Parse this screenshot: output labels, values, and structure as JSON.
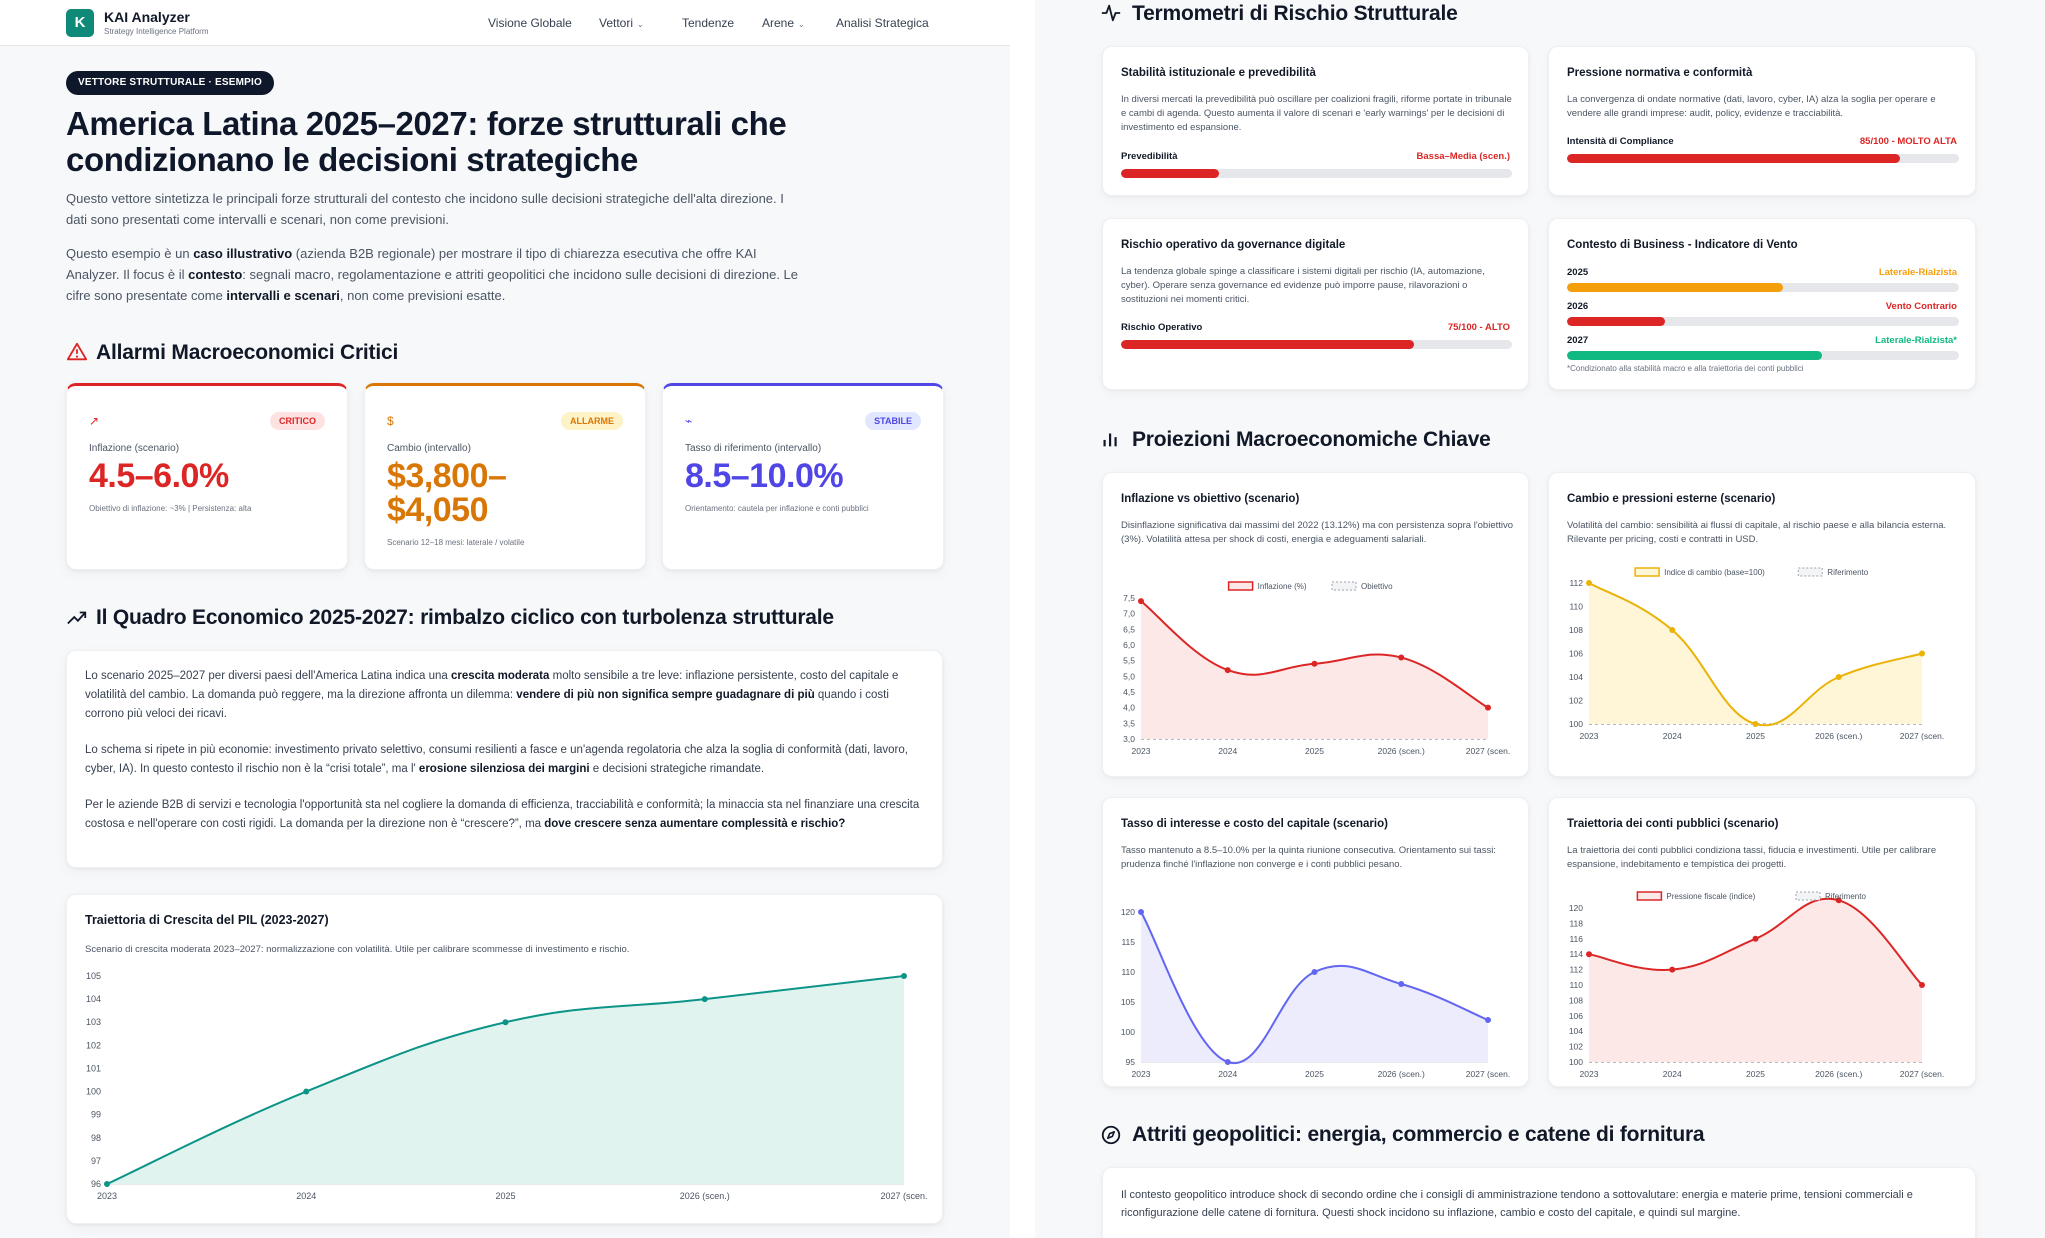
{
  "nav": {
    "logo_letter": "K",
    "brand": "KAI Analyzer",
    "tagline": "Strategy Intelligence Platform",
    "items": [
      {
        "label": "Visione Globale",
        "dropdown": false
      },
      {
        "label": "Vettori",
        "dropdown": true
      },
      {
        "label": "Tendenze",
        "dropdown": false
      },
      {
        "label": "Arene",
        "dropdown": true
      },
      {
        "label": "Analisi Strategica",
        "dropdown": false
      }
    ]
  },
  "hero": {
    "badge": "VETTORE STRUTTURALE · ESEMPIO",
    "title": "America Latina 2025–2027: forze strutturali che condizionano le decisioni strategiche",
    "intro": "Questo vettore sintetizza le principali forze strutturali del contesto che incidono sulle decisioni strategiche dell'alta direzione. I dati sono presentati come intervalli e scenari, non come previsioni.",
    "example_parts": [
      "Questo esempio è un ",
      "caso illustrativo",
      " (azienda B2B regionale) per mostrare il tipo di chiarezza esecutiva che offre KAI Analyzer. Il focus è il ",
      "contesto",
      ": segnali macro, regolamentazione e attriti geopolitici che incidono sulle decisioni di direzione. Le cifre sono presentate come ",
      "intervalli e scenari",
      ", non come previsioni esatte."
    ]
  },
  "alarms": {
    "title": "Allarmi Macroeconomici Critici",
    "cards": [
      {
        "icon": "trending-up-icon",
        "glyph": "↗",
        "status": "CRITICO",
        "label": "Inflazione (scenario)",
        "value": "4.5–6.0%",
        "note": "Obiettivo di inflazione: ~3% | Persistenza: alta",
        "color": "#dc2626",
        "pill_bg": "#fee2e2"
      },
      {
        "icon": "dollar-icon",
        "glyph": "$",
        "status": "ALLARME",
        "label": "Cambio (intervallo)",
        "value": "$3,800–$4,050",
        "note": "Scenario 12–18 mesi: laterale / volatile",
        "color": "#d97706",
        "pill_bg": "#fef3c7"
      },
      {
        "icon": "activity-icon",
        "glyph": "⌁",
        "status": "STABILE",
        "label": "Tasso di riferimento (intervallo)",
        "value": "8.5–10.0%",
        "note": "Orientamento: cautela per inflazione e conti pubblici",
        "color": "#4f46e5",
        "pill_bg": "#e0e7ff"
      }
    ]
  },
  "framework": {
    "title": "Il Quadro Economico 2025-2027: rimbalzo ciclico con turbolenza strutturale",
    "p1": [
      "Lo scenario 2025–2027 per diversi paesi dell'America Latina indica una ",
      "crescita moderata",
      " molto sensibile a tre leve: inflazione persistente, costo del capitale e volatilità del cambio. La domanda può reggere, ma la direzione affronta un dilemma: ",
      "vendere di più non significa sempre guadagnare di più",
      " quando i costi corrono più veloci dei ricavi."
    ],
    "p2": [
      "Lo schema si ripete in più economie: investimento privato selettivo, consumi resilienti a fasce e un'agenda regolatoria che alza la soglia di conformità (dati, lavoro, cyber, IA). In questo contesto il rischio non è la “crisi totale”, ma l' ",
      "erosione silenziosa dei margini",
      " e decisioni strategiche rimandate."
    ],
    "p3": [
      "Per le aziende B2B di servizi e tecnologia l'opportunità sta nel cogliere la domanda di efficienza, tracciabilità e conformità; la minaccia sta nel finanziare una crescita costosa e nell'operare con costi rigidi. La domanda per la direzione non è “crescere?”, ma ",
      "dove crescere senza aumentare complessità e rischio?",
      ""
    ]
  },
  "gdp_chart": {
    "title": "Traiettoria di Crescita del PIL (2023-2027)",
    "desc": "Scenario di crescita moderata 2023–2027: normalizzazione con volatilità. Utile per calibrare scommesse di investimento e rischio.",
    "color": "#0d9488"
  },
  "risk": {
    "title": "Termometri di Rischio Strutturale",
    "cards": [
      {
        "title": "Stabilità istituzionale e prevedibilità",
        "desc": "In diversi mercati la prevedibilità può oscillare per coalizioni fragili, riforme portate in tribunale e cambi di agenda. Questo aumenta il valore di scenari e 'early warnings' per le decisioni di investimento ed espansione.",
        "bars": [
          {
            "label": "Prevedibilità",
            "value": "Bassa–Media (scen.)",
            "level": 0.25,
            "color": "#dc2626"
          }
        ]
      },
      {
        "title": "Pressione normativa e conformità",
        "desc": "La convergenza di ondate normative (dati, lavoro, cyber, IA) alza la soglia per operare e vendere alle grandi imprese: audit, policy, evidenze e tracciabilità.",
        "bars": [
          {
            "label": "Intensità di Compliance",
            "value": "85/100 - MOLTO ALTA",
            "level": 0.85,
            "color": "#dc2626"
          }
        ]
      },
      {
        "title": "Rischio operativo da governance digitale",
        "desc": "La tendenza globale spinge a classificare i sistemi digitali per rischio (IA, automazione, cyber). Operare senza governance ed evidenze può imporre pause, rilavorazioni o sostituzioni nei momenti critici.",
        "bars": [
          {
            "label": "Rischio Operativo",
            "value": "75/100 - ALTO",
            "level": 0.75,
            "color": "#dc2626"
          }
        ]
      },
      {
        "title": "Contesto di Business - Indicatore di Vento",
        "desc": "",
        "bars": [
          {
            "label": "2025",
            "value": "Laterale-Rialzista",
            "level": 0.55,
            "color": "#f59e0b"
          },
          {
            "label": "2026",
            "value": "Vento Contrario",
            "level": 0.25,
            "color": "#dc2626"
          },
          {
            "label": "2027",
            "value": "Laterale-Rialzista*",
            "level": 0.65,
            "color": "#10b981"
          }
        ],
        "note": "*Condizionato alla stabilità macro e alla traiettoria dei conti pubblici"
      }
    ]
  },
  "proj": {
    "title": "Proiezioni Macroeconomiche Chiave",
    "charts": [
      {
        "title": "Inflazione vs obiettivo (scenario)",
        "desc": "Disinflazione significativa dai massimi del 2022 (13.12%) ma con persistenza sopra l'obiettivo (3%). Volatilità attesa per shock di costi, energia e adeguamenti salariali."
      },
      {
        "title": "Cambio e pressioni esterne (scenario)",
        "desc": "Volatilità del cambio: sensibilità ai flussi di capitale, al rischio paese e alla bilancia esterna. Rilevante per pricing, costi e contratti in USD."
      },
      {
        "title": "Tasso di interesse e costo del capitale (scenario)",
        "desc": "Tasso mantenuto a 8.5–10.0% per la quinta riunione consecutiva. Orientamento sui tassi: prudenza finché l'inflazione non converge e i conti pubblici pesano."
      },
      {
        "title": "Traiettoria dei conti pubblici (scenario)",
        "desc": "La traiettoria dei conti pubblici condiziona tassi, fiducia e investimenti. Utile per calibrare espansione, indebitamento e tempistica dei progetti."
      }
    ]
  },
  "geo": {
    "title": "Attriti geopolitici: energia, commercio e catene di fornitura",
    "text": "Il contesto geopolitico introduce shock di secondo ordine che i consigli di amministrazione tendono a sottovalutare: energia e materie prime, tensioni commerciali e riconfigurazione delle catene di fornitura. Questi shock incidono su inflazione, cambio e costo del capitale, e quindi sul margine."
  },
  "chart_data": [
    {
      "id": "gdp",
      "type": "area",
      "title": "Traiettoria di Crescita del PIL (2023-2027)",
      "x": [
        "2023",
        "2024",
        "2025",
        "2026 (scen.)",
        "2027 (scen."
      ],
      "series": [
        {
          "values": [
            96,
            100,
            103,
            104,
            105
          ]
        }
      ],
      "ylim": [
        96,
        105
      ],
      "yticks": [
        96,
        97,
        98,
        99,
        100,
        101,
        102,
        103,
        104,
        105
      ],
      "color": "#0d9488",
      "fill": "#e1f3ef",
      "grid": false
    },
    {
      "id": "infl",
      "type": "area",
      "title": "Inflazione vs obiettivo (scenario)",
      "x": [
        "2023",
        "2024",
        "2025",
        "2026 (scen.)",
        "2027 (scen."
      ],
      "series": [
        {
          "name": "Inflazione (%)",
          "values": [
            7.4,
            5.2,
            5.4,
            5.6,
            4.0
          ]
        },
        {
          "name": "Obiettivo",
          "values": [
            3.0,
            3.0,
            3.0,
            3.0,
            3.0
          ]
        }
      ],
      "ylim": [
        3.0,
        7.5
      ],
      "yticks": [
        "3,0",
        "3,5",
        "4,0",
        "4,5",
        "5,0",
        "5,5",
        "6,0",
        "6,5",
        "7,0",
        "7,5"
      ],
      "color": "#dc2626",
      "fill": "#fde8e8",
      "legend": "top"
    },
    {
      "id": "fx",
      "type": "area",
      "title": "Cambio e pressioni esterne (scenario)",
      "x": [
        "2023",
        "2024",
        "2025",
        "2026 (scen.)",
        "2027 (scen."
      ],
      "series": [
        {
          "name": "Indice di cambio (base=100)",
          "values": [
            112,
            108,
            100,
            104,
            106
          ]
        },
        {
          "name": "Riferimento",
          "values": [
            100,
            100,
            100,
            100,
            100
          ]
        }
      ],
      "ylim": [
        100,
        112
      ],
      "yticks": [
        "100",
        "102",
        "104",
        "106",
        "108",
        "110",
        "112"
      ],
      "color": "#eab308",
      "fill": "#fef6d6",
      "legend": "top"
    },
    {
      "id": "rate",
      "type": "area",
      "title": "Tasso di interesse e costo del capitale (scenario)",
      "x": [
        "2023",
        "2024",
        "2025",
        "2026 (scen.)",
        "2027 (scen."
      ],
      "series": [
        {
          "values": [
            120,
            95,
            110,
            108,
            102
          ]
        }
      ],
      "ylim": [
        95,
        120
      ],
      "yticks": [
        "95",
        "100",
        "105",
        "110",
        "115",
        "120"
      ],
      "color": "#6366f1",
      "fill": "#ececfd"
    },
    {
      "id": "fiscal",
      "type": "area",
      "title": "Traiettoria dei conti pubblici (scenario)",
      "x": [
        "2023",
        "2024",
        "2025",
        "2026 (scen.)",
        "2027 (scen."
      ],
      "series": [
        {
          "name": "Pressione fiscale (indice)",
          "values": [
            114,
            112,
            116,
            121,
            110
          ]
        },
        {
          "name": "Riferimento",
          "values": [
            100,
            100,
            100,
            100,
            100
          ]
        }
      ],
      "ylim": [
        100,
        120
      ],
      "yticks": [
        "100",
        "102",
        "104",
        "106",
        "108",
        "110",
        "112",
        "114",
        "116",
        "118",
        "120"
      ],
      "color": "#dc2626",
      "fill": "#fde8e8",
      "legend": "top"
    }
  ]
}
